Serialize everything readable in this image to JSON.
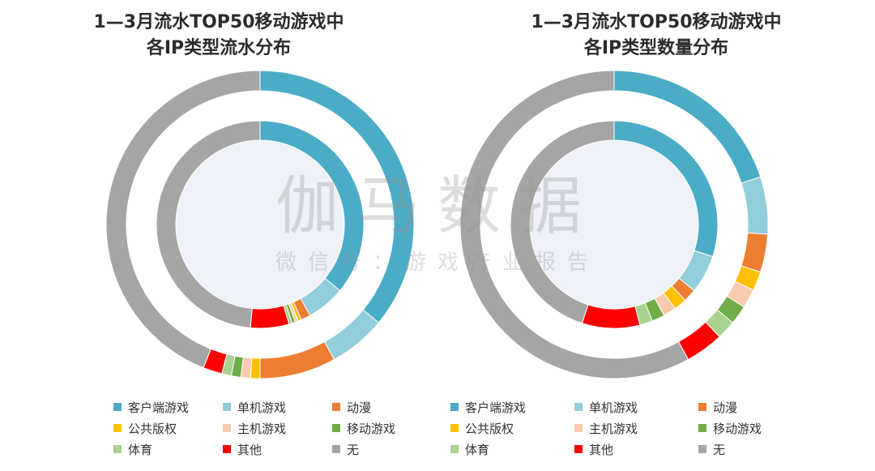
{
  "watermark": {
    "main": "伽马数据",
    "sub": "微信号：游戏产业报告"
  },
  "chart_data": [
    {
      "type": "pie",
      "title_lines": [
        "1—3月流水TOP50移动游戏中",
        "各IP类型流水分布"
      ],
      "categories": [
        "客户端游戏",
        "单机游戏",
        "动漫",
        "公共版权",
        "主机游戏",
        "移动游戏",
        "体育",
        "其他",
        "无"
      ],
      "colors": [
        "#4BACC6",
        "#92CDDC",
        "#ED7D31",
        "#FFC000",
        "#F8CBAD",
        "#70AD47",
        "#A9D18E",
        "#FF0000",
        "#A5A5A5"
      ],
      "rings": [
        {
          "name": "outer",
          "values": [
            36,
            6,
            8,
            1,
            1,
            1,
            1,
            2,
            44
          ]
        },
        {
          "name": "inner",
          "values": [
            36,
            6,
            1.5,
            0.5,
            0.5,
            0.5,
            0.5,
            6,
            48.5
          ]
        }
      ],
      "legend": "bottom"
    },
    {
      "type": "pie",
      "title_lines": [
        "1—3月流水TOP50移动游戏中",
        "各IP类型数量分布"
      ],
      "categories": [
        "客户端游戏",
        "单机游戏",
        "动漫",
        "公共版权",
        "主机游戏",
        "移动游戏",
        "体育",
        "其他",
        "无"
      ],
      "colors": [
        "#4BACC6",
        "#92CDDC",
        "#ED7D31",
        "#FFC000",
        "#F8CBAD",
        "#70AD47",
        "#A9D18E",
        "#FF0000",
        "#A5A5A5"
      ],
      "rings": [
        {
          "name": "outer",
          "values": [
            20,
            6,
            4,
            2,
            2,
            2,
            2,
            4,
            58
          ]
        },
        {
          "name": "inner",
          "values": [
            30,
            6,
            2,
            2,
            2,
            2,
            2,
            9,
            45
          ]
        }
      ],
      "legend": "bottom"
    }
  ]
}
